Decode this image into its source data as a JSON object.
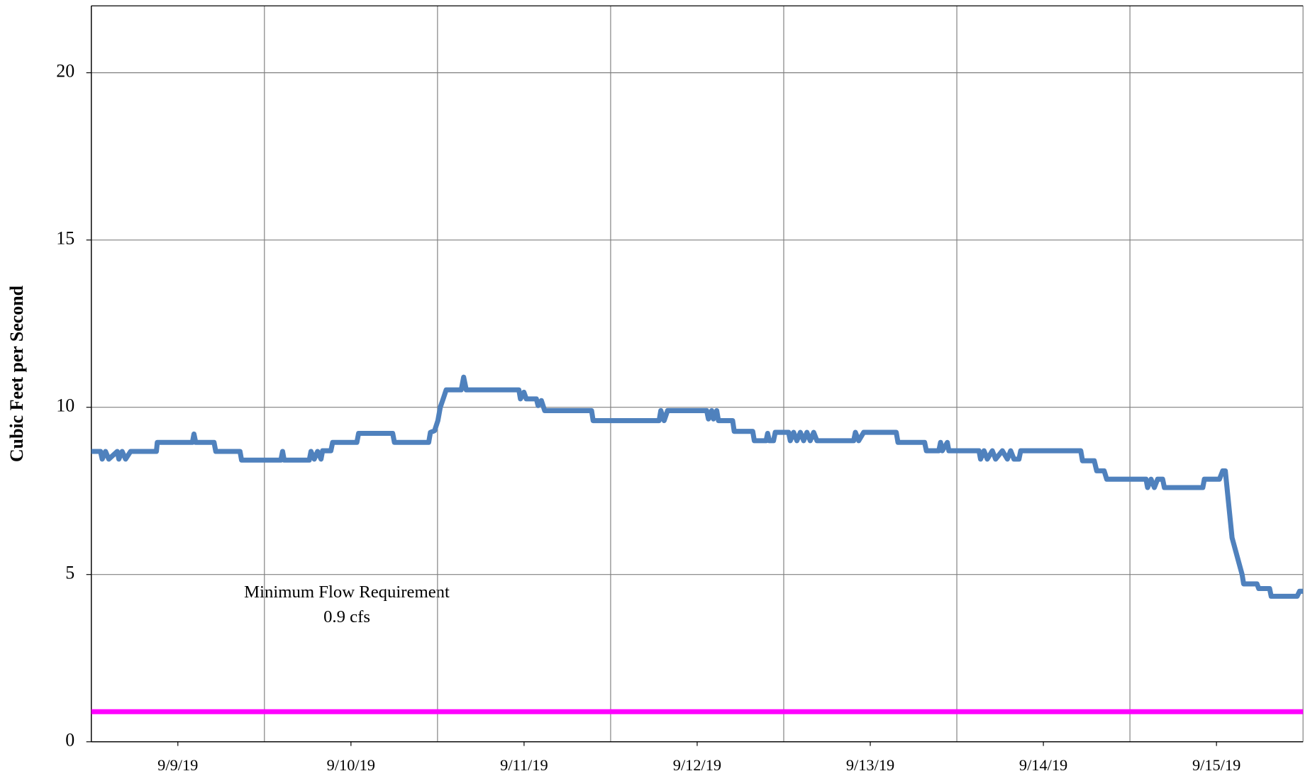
{
  "chart_data": {
    "type": "line",
    "ylabel": "Cubic Feet per Second",
    "ylim": [
      0,
      22
    ],
    "yticks": [
      0,
      5,
      10,
      15,
      20
    ],
    "xlim": [
      0,
      7
    ],
    "xticks": [
      {
        "value": 0.5,
        "label": "9/9/19"
      },
      {
        "value": 1.5,
        "label": "9/10/19"
      },
      {
        "value": 2.5,
        "label": "9/11/19"
      },
      {
        "value": 3.5,
        "label": "9/12/19"
      },
      {
        "value": 4.5,
        "label": "9/13/19"
      },
      {
        "value": 5.5,
        "label": "9/14/19"
      },
      {
        "value": 6.5,
        "label": "9/15/19"
      }
    ],
    "xgrid": [
      0,
      1,
      2,
      3,
      4,
      5,
      6,
      7
    ],
    "grid": true,
    "annotations": [
      "Minimum Flow Requirement",
      "0.9 cfs"
    ],
    "series": [
      {
        "color": "#4f81bd",
        "x": [
          0,
          0.053,
          0.063,
          0.082,
          0.101,
          0.15,
          0.159,
          0.178,
          0.198,
          0.227,
          0.376,
          0.381,
          0.584,
          0.593,
          0.603,
          0.709,
          0.719,
          0.859,
          0.868,
          1.095,
          1.105,
          1.114,
          1.259,
          1.269,
          1.288,
          1.307,
          1.327,
          1.336,
          1.384,
          1.394,
          1.534,
          1.544,
          1.741,
          1.751,
          1.949,
          1.959,
          1.983,
          2.002,
          2.016,
          2.036,
          2.05,
          2.137,
          2.151,
          2.166,
          2.47,
          2.479,
          2.499,
          2.513,
          2.571,
          2.581,
          2.6,
          2.619,
          2.89,
          2.899,
          3.28,
          3.29,
          3.309,
          3.329,
          3.555,
          3.565,
          3.584,
          3.594,
          3.613,
          3.623,
          3.705,
          3.714,
          3.821,
          3.83,
          3.898,
          3.907,
          3.917,
          3.941,
          3.951,
          4.028,
          4.038,
          4.057,
          4.076,
          4.096,
          4.115,
          4.134,
          4.153,
          4.173,
          4.192,
          4.404,
          4.414,
          4.433,
          4.462,
          4.65,
          4.66,
          4.814,
          4.824,
          4.896,
          4.906,
          4.916,
          4.945,
          4.954,
          5.128,
          5.137,
          5.157,
          5.176,
          5.205,
          5.224,
          5.263,
          5.292,
          5.311,
          5.33,
          5.359,
          5.369,
          5.716,
          5.726,
          5.794,
          5.808,
          5.851,
          5.866,
          6.093,
          6.102,
          6.122,
          6.141,
          6.16,
          6.189,
          6.199,
          6.421,
          6.43,
          6.517,
          6.536,
          6.551,
          6.59,
          6.648,
          6.657,
          6.734,
          6.744,
          6.807,
          6.816,
          6.966,
          6.98,
          7
        ],
        "values": [
          8.68,
          8.68,
          8.45,
          8.68,
          8.45,
          8.68,
          8.45,
          8.68,
          8.45,
          8.68,
          8.68,
          8.95,
          8.95,
          9.2,
          8.95,
          8.95,
          8.68,
          8.68,
          8.42,
          8.42,
          8.68,
          8.42,
          8.42,
          8.68,
          8.45,
          8.68,
          8.45,
          8.7,
          8.7,
          8.95,
          8.95,
          9.22,
          9.22,
          8.95,
          8.95,
          9.25,
          9.3,
          9.6,
          10,
          10.3,
          10.52,
          10.52,
          10.9,
          10.52,
          10.52,
          10.25,
          10.45,
          10.25,
          10.25,
          10.05,
          10.2,
          9.9,
          9.9,
          9.6,
          9.6,
          9.9,
          9.6,
          9.9,
          9.9,
          9.65,
          9.9,
          9.65,
          9.9,
          9.6,
          9.6,
          9.28,
          9.28,
          9.0,
          9.0,
          9.22,
          9.0,
          9.0,
          9.25,
          9.25,
          9.0,
          9.25,
          9.0,
          9.25,
          9.0,
          9.25,
          9.0,
          9.25,
          9.0,
          9.0,
          9.25,
          9.0,
          9.25,
          9.25,
          8.95,
          8.95,
          8.7,
          8.7,
          8.95,
          8.7,
          8.95,
          8.7,
          8.7,
          8.45,
          8.7,
          8.45,
          8.7,
          8.45,
          8.7,
          8.45,
          8.7,
          8.45,
          8.45,
          8.7,
          8.7,
          8.4,
          8.4,
          8.1,
          8.1,
          7.85,
          7.85,
          7.6,
          7.85,
          7.6,
          7.85,
          7.85,
          7.6,
          7.6,
          7.85,
          7.85,
          8.1,
          8.1,
          6.1,
          5.0,
          4.72,
          4.72,
          4.58,
          4.58,
          4.35,
          4.35,
          4.5,
          4.5
        ]
      },
      {
        "color": "#ff00ff",
        "x": [
          0,
          7
        ],
        "values": [
          0.9,
          0.9
        ]
      }
    ]
  }
}
